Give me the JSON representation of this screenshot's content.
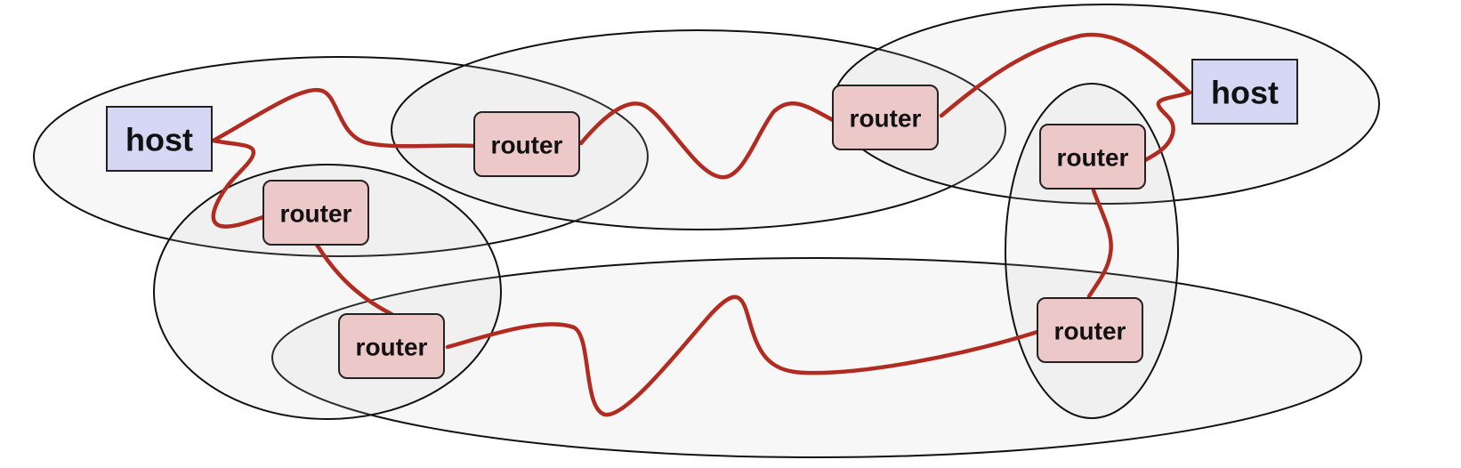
{
  "diagram": {
    "colors": {
      "host_fill": "#d6d6f5",
      "router_fill": "#ecc8c8",
      "link": "#b22b20",
      "network_fill": "#efefef",
      "network_stroke": "#111111"
    },
    "nodes": [
      {
        "id": "host-left",
        "kind": "host",
        "label": "host"
      },
      {
        "id": "host-right",
        "kind": "host",
        "label": "host"
      },
      {
        "id": "router-1",
        "kind": "router",
        "label": "router"
      },
      {
        "id": "router-2",
        "kind": "router",
        "label": "router"
      },
      {
        "id": "router-3",
        "kind": "router",
        "label": "router"
      },
      {
        "id": "router-4",
        "kind": "router",
        "label": "router"
      },
      {
        "id": "router-5",
        "kind": "router",
        "label": "router"
      },
      {
        "id": "router-6",
        "kind": "router",
        "label": "router"
      },
      {
        "id": "router-7",
        "kind": "router",
        "label": "router"
      }
    ],
    "links": [
      {
        "from": "host-left",
        "to": "router-1"
      },
      {
        "from": "host-left",
        "to": "router-2"
      },
      {
        "from": "router-1",
        "to": "router-4"
      },
      {
        "from": "router-2",
        "to": "router-3"
      },
      {
        "from": "router-3",
        "to": "router-5"
      },
      {
        "from": "router-5",
        "to": "host-right"
      },
      {
        "from": "host-right",
        "to": "router-6"
      },
      {
        "from": "router-6",
        "to": "router-7"
      },
      {
        "from": "router-7",
        "to": "router-4"
      }
    ]
  }
}
